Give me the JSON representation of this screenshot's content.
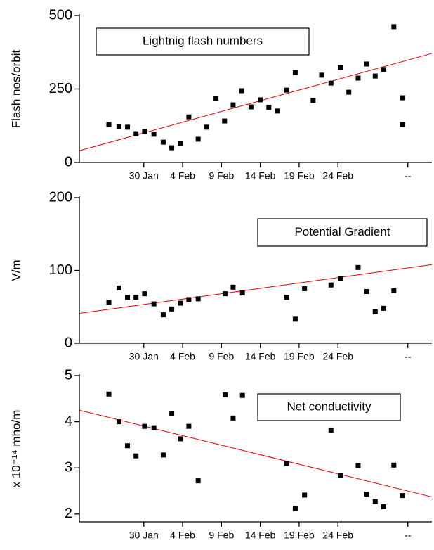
{
  "chart_data": [
    {
      "type": "scatter",
      "ylabel": "Flash nos/orbit",
      "annotation": "Lightnig flash numbers",
      "xlim": [
        21.7,
        67.1
      ],
      "ylim": [
        0,
        500
      ],
      "yticks": [
        0,
        250,
        500
      ],
      "xticks": [
        {
          "value": 30,
          "label": "30 Jan"
        },
        {
          "value": 35,
          "label": "4 Feb"
        },
        {
          "value": 40,
          "label": "9 Feb"
        },
        {
          "value": 45,
          "label": "14 Feb"
        },
        {
          "value": 50,
          "label": "19 Feb"
        },
        {
          "value": 55,
          "label": "24 Feb"
        },
        {
          "value": 64,
          "label": "--"
        }
      ],
      "color": "#000000",
      "x": [
        25.5,
        26.8,
        27.9,
        29.0,
        30.1,
        31.3,
        32.5,
        33.6,
        34.7,
        35.8,
        37.0,
        38.1,
        39.3,
        40.4,
        41.5,
        42.6,
        43.8,
        45.0,
        46.1,
        47.2,
        48.4,
        49.5,
        51.8,
        52.9,
        54.1,
        55.3,
        56.4,
        57.6,
        58.7,
        59.8,
        60.9,
        62.2,
        63.3,
        63.3
      ],
      "values": [
        129,
        122,
        120,
        98,
        105,
        96,
        69,
        50,
        65,
        155,
        79,
        120,
        218,
        141,
        196,
        244,
        189,
        213,
        187,
        175,
        246,
        306,
        211,
        297,
        270,
        323,
        239,
        287,
        335,
        294,
        316,
        462,
        220,
        129
      ],
      "trend_line": {
        "color": "#e00000",
        "x": [
          21.7,
          67.1
        ],
        "values": [
          40,
          371
        ]
      }
    },
    {
      "type": "scatter",
      "ylabel": "V/m",
      "annotation": "Potential Gradient",
      "xlim": [
        21.7,
        67.1
      ],
      "ylim": [
        0,
        200
      ],
      "yticks": [
        0,
        100,
        200
      ],
      "xticks": [
        {
          "value": 30,
          "label": "30 Jan"
        },
        {
          "value": 35,
          "label": "4 Feb"
        },
        {
          "value": 40,
          "label": "9 Feb"
        },
        {
          "value": 45,
          "label": "14 Feb"
        },
        {
          "value": 50,
          "label": "19 Feb"
        },
        {
          "value": 55,
          "label": "24 Feb"
        },
        {
          "value": 64,
          "label": "--"
        }
      ],
      "color": "#000000",
      "x": [
        25.5,
        26.8,
        27.9,
        29.0,
        30.1,
        31.3,
        32.5,
        33.6,
        34.7,
        35.8,
        37.0,
        40.5,
        41.5,
        42.7,
        48.4,
        49.5,
        50.7,
        54.1,
        55.3,
        57.6,
        58.7,
        59.8,
        60.9,
        62.2
      ],
      "values": [
        56,
        76,
        63,
        63,
        68,
        54,
        39,
        47,
        55,
        60,
        61,
        68,
        77,
        69,
        63,
        33,
        75,
        80,
        89,
        104,
        71,
        43,
        48,
        72
      ],
      "trend_line": {
        "color": "#e00000",
        "x": [
          21.7,
          67.1
        ],
        "values": [
          41,
          108
        ]
      }
    },
    {
      "type": "scatter",
      "ylabel": "x 10⁻¹⁴ mho/m",
      "annotation": "Net conductivity",
      "xlim": [
        21.7,
        67.1
      ],
      "ylim": [
        1.83,
        5
      ],
      "yticks": [
        2,
        3,
        4,
        5
      ],
      "xticks": [
        {
          "value": 30,
          "label": "30 Jan"
        },
        {
          "value": 35,
          "label": "4 Feb"
        },
        {
          "value": 40,
          "label": "9 Feb"
        },
        {
          "value": 45,
          "label": "14 Feb"
        },
        {
          "value": 50,
          "label": "19 Feb"
        },
        {
          "value": 55,
          "label": "24 Feb"
        },
        {
          "value": 64,
          "label": "--"
        }
      ],
      "color": "#000000",
      "x": [
        25.5,
        26.8,
        27.9,
        29.0,
        30.1,
        31.3,
        32.5,
        33.6,
        34.7,
        35.8,
        37.0,
        40.5,
        41.5,
        42.7,
        48.4,
        49.5,
        50.7,
        54.1,
        55.3,
        57.6,
        58.7,
        59.8,
        60.9,
        62.2,
        63.3
      ],
      "values": [
        4.6,
        4.0,
        3.48,
        3.26,
        3.9,
        3.87,
        3.28,
        4.17,
        3.63,
        3.9,
        2.72,
        4.58,
        4.08,
        4.57,
        3.1,
        2.12,
        2.41,
        3.82,
        2.84,
        3.05,
        2.43,
        2.27,
        2.16,
        3.06,
        2.4
      ],
      "trend_line": {
        "color": "#e00000",
        "x": [
          21.7,
          67.1
        ],
        "values": [
          4.25,
          2.37
        ]
      }
    }
  ]
}
